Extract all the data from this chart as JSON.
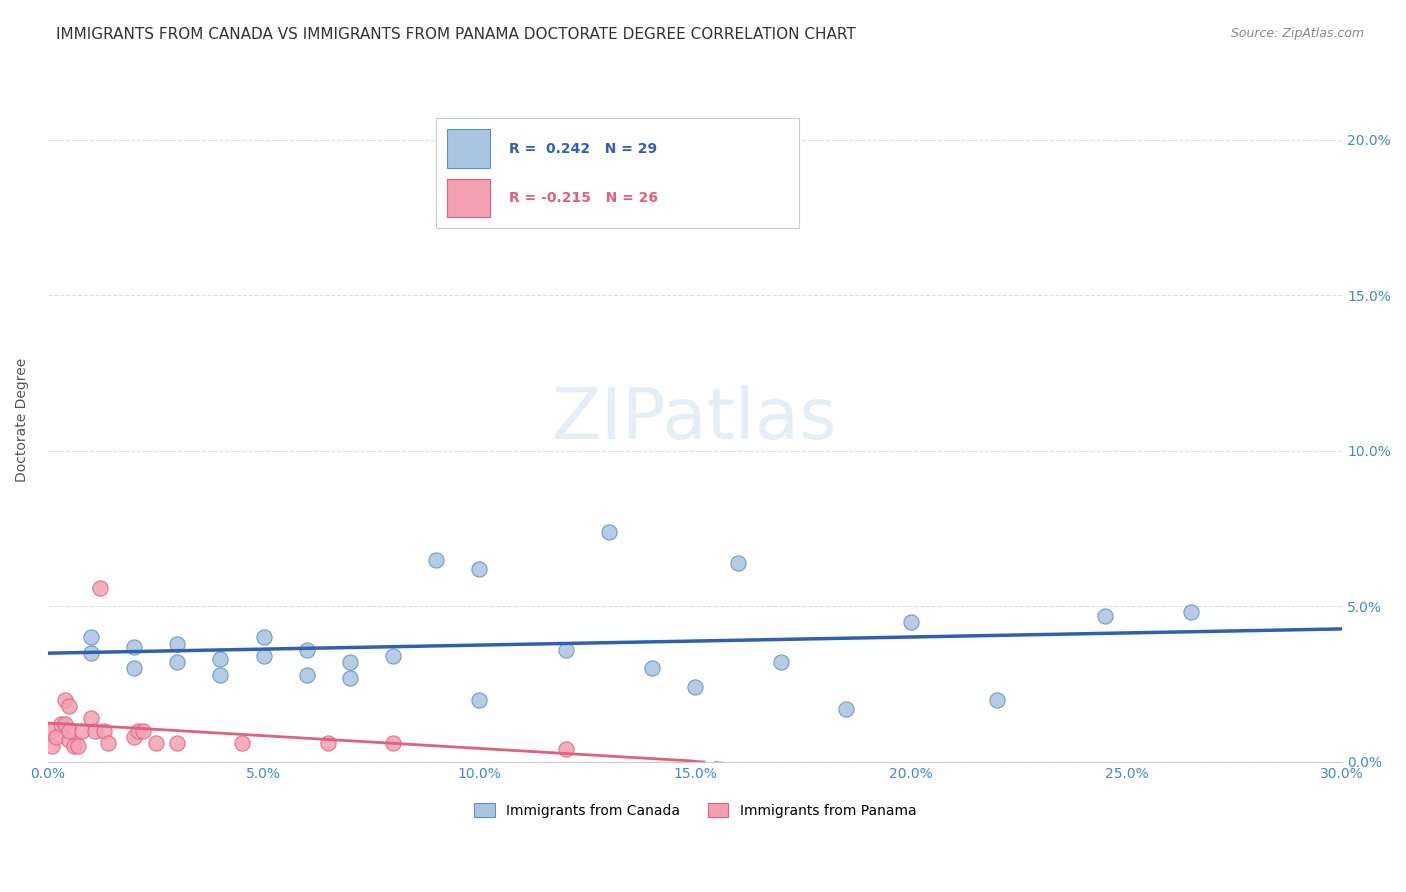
{
  "title": "IMMIGRANTS FROM CANADA VS IMMIGRANTS FROM PANAMA DOCTORATE DEGREE CORRELATION CHART",
  "source": "Source: ZipAtlas.com",
  "xlabel": "",
  "ylabel": "Doctorate Degree",
  "xlim": [
    0.0,
    0.3
  ],
  "ylim": [
    0.0,
    0.22
  ],
  "xticks": [
    0.0,
    0.05,
    0.1,
    0.15,
    0.2,
    0.25,
    0.3
  ],
  "xtick_labels": [
    "0.0%",
    "5.0%",
    "10.0%",
    "15.0%",
    "20.0%",
    "25.0%",
    "30.0%"
  ],
  "yticks": [
    0.0,
    0.05,
    0.1,
    0.15,
    0.2
  ],
  "ytick_labels": [
    "0.0%",
    "5.0%",
    "10.0%",
    "15.0%",
    "20.0%"
  ],
  "canada_color": "#a8c4e0",
  "panama_color": "#f4a0b0",
  "canada_edge_color": "#6090c0",
  "panama_edge_color": "#e06080",
  "trend_canada_color": "#3060b0",
  "trend_panama_color": "#e06080",
  "legend_canada_r": "0.242",
  "legend_canada_n": "29",
  "legend_panama_r": "-0.215",
  "legend_panama_n": "26",
  "canada_label": "Immigrants from Canada",
  "panama_label": "Immigrants from Panama",
  "watermark": "ZIPatlas",
  "canada_x": [
    0.01,
    0.01,
    0.02,
    0.02,
    0.03,
    0.03,
    0.04,
    0.04,
    0.05,
    0.05,
    0.06,
    0.06,
    0.07,
    0.07,
    0.08,
    0.09,
    0.1,
    0.1,
    0.12,
    0.13,
    0.14,
    0.15,
    0.16,
    0.17,
    0.185,
    0.2,
    0.22,
    0.245,
    0.265
  ],
  "canada_y": [
    0.04,
    0.035,
    0.037,
    0.03,
    0.038,
    0.032,
    0.033,
    0.028,
    0.04,
    0.034,
    0.036,
    0.028,
    0.032,
    0.027,
    0.034,
    0.065,
    0.062,
    0.02,
    0.036,
    0.074,
    0.03,
    0.024,
    0.064,
    0.032,
    0.017,
    0.045,
    0.02,
    0.047,
    0.048
  ],
  "panama_x": [
    0.001,
    0.001,
    0.002,
    0.003,
    0.004,
    0.004,
    0.005,
    0.005,
    0.005,
    0.006,
    0.007,
    0.008,
    0.01,
    0.011,
    0.012,
    0.013,
    0.014,
    0.02,
    0.021,
    0.022,
    0.025,
    0.03,
    0.045,
    0.065,
    0.08,
    0.12
  ],
  "panama_y": [
    0.01,
    0.005,
    0.008,
    0.012,
    0.02,
    0.012,
    0.007,
    0.01,
    0.018,
    0.005,
    0.005,
    0.01,
    0.014,
    0.01,
    0.056,
    0.01,
    0.006,
    0.008,
    0.01,
    0.01,
    0.006,
    0.006,
    0.006,
    0.006,
    0.006,
    0.004
  ],
  "background_color": "#ffffff",
  "grid_color": "#dddddd",
  "title_fontsize": 11,
  "axis_label_fontsize": 10,
  "tick_fontsize": 10,
  "tick_color": "#4488cc",
  "dot_size": 120
}
